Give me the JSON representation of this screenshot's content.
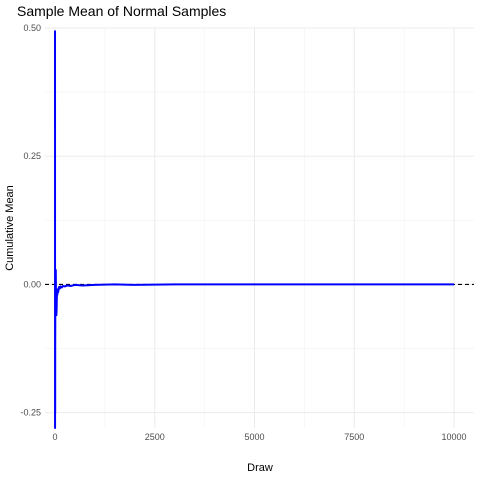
{
  "chart_data": {
    "type": "line",
    "title": "Sample Mean of Normal Samples",
    "xlabel": "Draw",
    "ylabel": "Cumulative Mean",
    "xlim": [
      -250,
      10500
    ],
    "ylim": [
      -0.28,
      0.5
    ],
    "x_ticks": [
      0,
      2500,
      5000,
      7500,
      10000
    ],
    "x_tick_labels": [
      "0",
      "2500",
      "5000",
      "7500",
      "10000"
    ],
    "y_ticks": [
      -0.25,
      0,
      0.25,
      0.5
    ],
    "y_tick_labels": [
      "-0.25",
      "0.00",
      "0.25",
      "0.50"
    ],
    "grid": true,
    "series": [
      {
        "color": "#0000ff",
        "x": [
          1,
          2,
          3,
          4,
          5,
          6,
          8,
          10,
          12,
          14,
          16,
          18,
          20,
          22,
          25,
          28,
          31,
          35,
          40,
          45,
          50,
          55,
          60,
          70,
          80,
          90,
          100,
          120,
          140,
          170,
          200,
          250,
          300,
          400,
          500,
          700,
          1000,
          1500,
          2000,
          3000,
          4000,
          5000,
          6000,
          7000,
          8000,
          9000,
          10000
        ],
        "y": [
          0.495,
          -0.28,
          -0.21,
          -0.19,
          -0.25,
          -0.12,
          -0.06,
          -0.03,
          -0.05,
          0.02,
          0.0,
          -0.04,
          0.028,
          0.01,
          -0.02,
          -0.04,
          -0.03,
          -0.06,
          -0.05,
          -0.03,
          -0.02,
          -0.01,
          -0.02,
          -0.01,
          -0.015,
          -0.01,
          -0.005,
          -0.008,
          -0.004,
          -0.006,
          -0.003,
          -0.004,
          -0.002,
          -0.003,
          -0.001,
          -0.002,
          -0.001,
          0.0,
          -0.001,
          0.0,
          0.0,
          0.0,
          0.0,
          0.0,
          0.0,
          0.0,
          0.0
        ]
      }
    ],
    "reference_line": {
      "y": 0,
      "style": "dashed",
      "color": "#000000"
    }
  }
}
